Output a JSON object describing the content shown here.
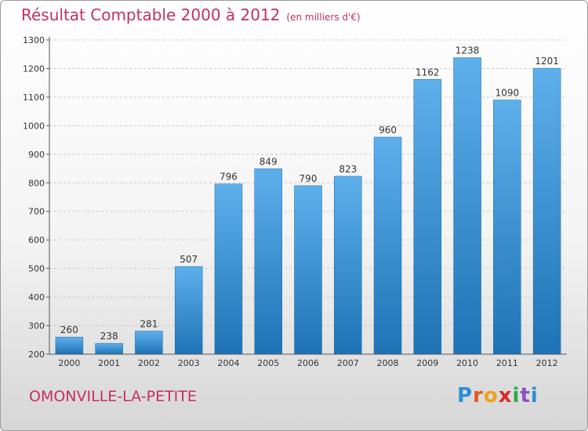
{
  "title": "Résultat Comptable 2000 à 2012",
  "subtitle": "(en milliers d'€)",
  "city": "OMONVILLE-LA-PETITE",
  "logo": {
    "text": "Proxiti",
    "letters": [
      "P",
      "r",
      "o",
      "x",
      "i",
      "t",
      "i"
    ],
    "colors": [
      "#2b8fd6",
      "#e05a1c",
      "#f0a21a",
      "#d92a2a",
      "#2ea84a",
      "#8a4fbf",
      "#2b8fd6"
    ]
  },
  "colors": {
    "bar_top": "#5eb0ec",
    "bar_bottom": "#1d73b5",
    "title": "#c4305e"
  },
  "chart_data": {
    "type": "bar",
    "categories": [
      "2000",
      "2001",
      "2002",
      "2003",
      "2004",
      "2005",
      "2006",
      "2007",
      "2008",
      "2009",
      "2010",
      "2011",
      "2012"
    ],
    "values": [
      260,
      238,
      281,
      507,
      796,
      849,
      790,
      823,
      960,
      1162,
      1238,
      1090,
      1201
    ],
    "ylim": [
      200,
      1300
    ],
    "yticks": [
      200,
      300,
      400,
      500,
      600,
      700,
      800,
      900,
      1000,
      1100,
      1200,
      1300
    ],
    "grid": true
  }
}
